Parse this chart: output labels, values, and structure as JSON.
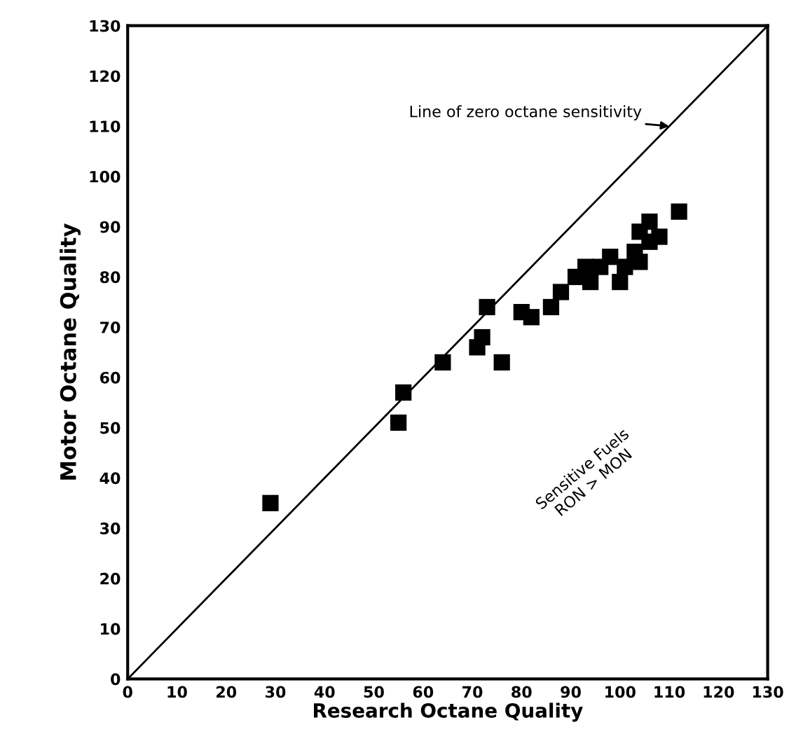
{
  "chart_data": {
    "type": "scatter",
    "xlabel": "Research Octane Quality",
    "ylabel": "Motor Octane Quality",
    "xlim": [
      0,
      130
    ],
    "ylim": [
      0,
      130
    ],
    "xticks": [
      0,
      10,
      20,
      30,
      40,
      50,
      60,
      70,
      80,
      90,
      100,
      110,
      120,
      130
    ],
    "yticks": [
      0,
      10,
      20,
      30,
      40,
      50,
      60,
      70,
      80,
      90,
      100,
      110,
      120,
      130
    ],
    "grid": false,
    "legend": false,
    "marker": "square",
    "series": [
      {
        "color": "#000000",
        "x": [
          29,
          55,
          56,
          64,
          71,
          72,
          73,
          76,
          80,
          82,
          86,
          88,
          91,
          93,
          94,
          96,
          98,
          100,
          101,
          103,
          104,
          104,
          106,
          106,
          108,
          112
        ],
        "values": [
          35,
          51,
          57,
          63,
          66,
          68,
          74,
          63,
          73,
          72,
          74,
          77,
          80,
          82,
          79,
          82,
          84,
          79,
          82,
          85,
          83,
          89,
          87,
          91,
          88,
          93
        ]
      },
      {
        "type": "line",
        "color": "#000000",
        "line_style": "solid",
        "marker": "none",
        "x": [
          0,
          130
        ],
        "values": [
          0,
          130
        ]
      }
    ],
    "annotations": [
      {
        "text": "Line of zero octane sensitivity",
        "x": 110,
        "y": 110
      },
      "Sensitive Fuels\nRON > MON"
    ]
  }
}
